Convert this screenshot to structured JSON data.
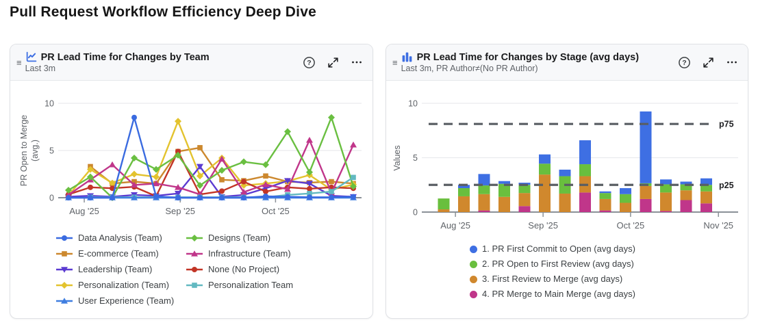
{
  "page_title": "Pull Request Workflow Efficiency Deep Dive",
  "icons": {
    "drag_handle": "≡"
  },
  "panels": {
    "left": {
      "title": "PR Lead Time for Changes by Team",
      "subtitle": "Last 3m"
    },
    "right": {
      "title": "PR Lead Time for Changes by Stage (avg days)",
      "subtitle": "Last 3m, PR Author≠(No PR Author)"
    }
  },
  "chart_data": [
    {
      "type": "line",
      "title": "PR Lead Time for Changes by Team",
      "ylabel": "PR Open to Merge (avg.)",
      "ylabel_lines": [
        "PR Open to Merge",
        "(avg.)"
      ],
      "ylim": [
        0,
        10
      ],
      "yticks": [
        0,
        5,
        10
      ],
      "grid": "horizontal",
      "x": [
        "2025-07-28",
        "2025-08-04",
        "2025-08-11",
        "2025-08-18",
        "2025-08-25",
        "2025-09-01",
        "2025-09-08",
        "2025-09-15",
        "2025-09-22",
        "2025-09-29",
        "2025-10-06",
        "2025-10-13",
        "2025-10-20",
        "2025-10-27"
      ],
      "x_ticks": {
        "labels": [
          "Aug '25",
          "Sep '25",
          "Oct '25"
        ],
        "positions": [
          0.72,
          5.1,
          9.45
        ]
      },
      "legend_position": "bottom",
      "series": [
        {
          "name": "Data Analysis (Team)",
          "color": "#3a6be0",
          "marker": "circle",
          "values": [
            0,
            0,
            0,
            8.5,
            0.15,
            0,
            0,
            0,
            0,
            0.15,
            0.1,
            0.05,
            0.05,
            0.1
          ]
        },
        {
          "name": "Designs (Team)",
          "color": "#6abf41",
          "marker": "diamond",
          "values": [
            0.8,
            2.2,
            0,
            4.2,
            3.0,
            4.5,
            1.3,
            2.9,
            3.8,
            3.5,
            7.0,
            2.7,
            8.5,
            1.2
          ]
        },
        {
          "name": "E-commerce (Team)",
          "color": "#cc882e",
          "marker": "square",
          "values": [
            null,
            3.3,
            1.5,
            1.7,
            1.5,
            4.9,
            5.3,
            1.9,
            1.8,
            2.3,
            1.7,
            1.6,
            1.7,
            1.5
          ]
        },
        {
          "name": "Infrastructure (Team)",
          "color": "#c0368a",
          "marker": "triangle",
          "values": [
            0.3,
            1.9,
            3.5,
            1.35,
            1.5,
            1.1,
            0.35,
            4.1,
            0.6,
            1.4,
            0.9,
            6.1,
            0.5,
            5.6
          ]
        },
        {
          "name": "Leadership (Team)",
          "color": "#5b3bd1",
          "marker": "triangle-down",
          "values": [
            0.1,
            0.2,
            0.1,
            0.3,
            0.2,
            0.45,
            3.3,
            0.1,
            0.3,
            1.0,
            1.8,
            1.5,
            0.2,
            0.1
          ]
        },
        {
          "name": "None (No Project)",
          "color": "#c23526",
          "marker": "circle",
          "values": [
            0.35,
            1.1,
            1.0,
            1.15,
            0.15,
            4.9,
            0.35,
            0.7,
            1.7,
            0.65,
            1.1,
            0.95,
            1.1,
            1.0
          ]
        },
        {
          "name": "Personalization (Team)",
          "color": "#e3c32e",
          "marker": "diamond",
          "values": [
            0.25,
            3.0,
            1.55,
            2.5,
            2.2,
            8.1,
            2.3,
            4.2,
            1.3,
            1.5,
            1.75,
            2.4,
            0.85,
            1.4
          ]
        },
        {
          "name": "Personalization Team",
          "color": "#62b9c1",
          "marker": "square",
          "values": [
            null,
            0.05,
            0.05,
            0.05,
            0.05,
            0.05,
            0.05,
            0.05,
            0.05,
            0.05,
            0.3,
            0.45,
            0.65,
            2.15
          ]
        },
        {
          "name": "User Experience (Team)",
          "color": "#3f7ee0",
          "marker": "triangle",
          "values": [
            0,
            0,
            0,
            0,
            0,
            0,
            0,
            0,
            0,
            0,
            0,
            0,
            0,
            0
          ]
        }
      ]
    },
    {
      "type": "stacked_bar",
      "title": "PR Lead Time for Changes by Stage (avg days)",
      "ylabel": "Values",
      "ylim": [
        0,
        10
      ],
      "yticks": [
        0,
        5,
        10
      ],
      "grid": "horizontal",
      "x": [
        "2025-07-28",
        "2025-08-04",
        "2025-08-11",
        "2025-08-18",
        "2025-08-25",
        "2025-09-01",
        "2025-09-08",
        "2025-09-15",
        "2025-09-22",
        "2025-09-29",
        "2025-10-06",
        "2025-10-13",
        "2025-10-20",
        "2025-10-27"
      ],
      "x_ticks": {
        "labels": [
          "Aug '25",
          "Sep '25",
          "Oct '25",
          "Nov '25"
        ],
        "positions": [
          0.58,
          4.92,
          9.25,
          13.6
        ]
      },
      "legend_position": "bottom",
      "stack_order_bottom_to_top": [
        "4. PR Merge to Main Merge (avg days)",
        "3. First Review to Merge (avg days)",
        "2. PR Open to First Review (avg days)",
        "1. PR First Commit to Open (avg days)"
      ],
      "series": [
        {
          "name": "1. PR First Commit to Open (avg days)",
          "color": "#3e6fe3",
          "values": [
            0,
            0.3,
            1.05,
            0.25,
            0.2,
            0.85,
            0.6,
            2.2,
            0.15,
            0.55,
            6.6,
            0.45,
            0.25,
            0.6
          ]
        },
        {
          "name": "2. PR Open to First Review (avg days)",
          "color": "#69bf3e",
          "values": [
            1.0,
            0.75,
            0.8,
            1.2,
            0.75,
            1.0,
            1.6,
            1.1,
            0.55,
            0.8,
            0.25,
            0.75,
            0.55,
            0.6
          ]
        },
        {
          "name": "3. First Review to Merge (avg days)",
          "color": "#d0882d",
          "values": [
            0.25,
            1.45,
            1.5,
            1.4,
            1.2,
            3.45,
            1.7,
            1.5,
            1.05,
            0.85,
            1.2,
            1.7,
            0.9,
            1.1
          ]
        },
        {
          "name": "4. PR Merge to Main Merge (avg days)",
          "color": "#c0368a",
          "values": [
            0,
            0,
            0.15,
            0,
            0.55,
            0,
            0,
            1.8,
            0.15,
            0,
            1.2,
            0.1,
            1.1,
            0.8
          ]
        }
      ],
      "reference_lines": [
        {
          "label": "p75",
          "value": 8.1
        },
        {
          "label": "p25",
          "value": 2.5
        }
      ]
    }
  ]
}
